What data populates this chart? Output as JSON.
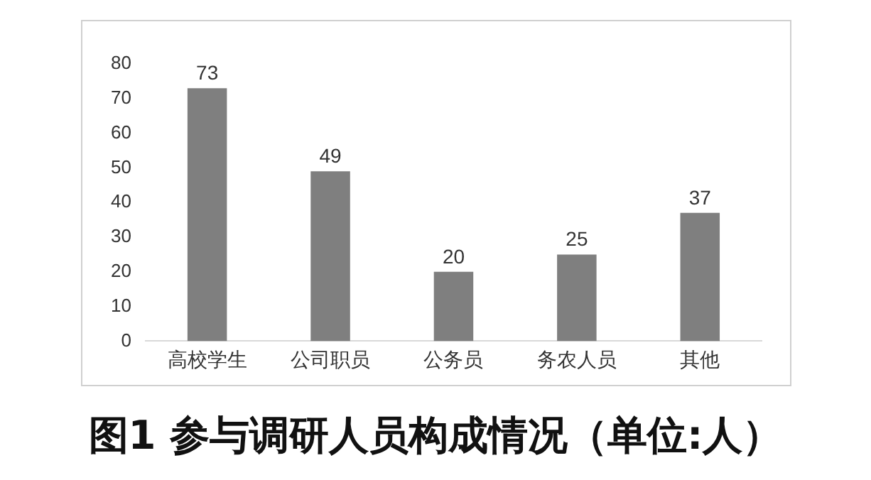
{
  "chart_data": {
    "type": "bar",
    "title": "图1 参与调研人员构成情况（单位:人）",
    "categories": [
      "高校学生",
      "公司职员",
      "公务员",
      "务农人员",
      "其他"
    ],
    "values": [
      73,
      49,
      20,
      25,
      37
    ],
    "color": "#7f7f7f",
    "ylim": [
      0,
      80
    ],
    "yticks": [
      0,
      10,
      20,
      30,
      40,
      50,
      60,
      70,
      80
    ],
    "grid": false,
    "legend": false,
    "data_labels": true
  }
}
